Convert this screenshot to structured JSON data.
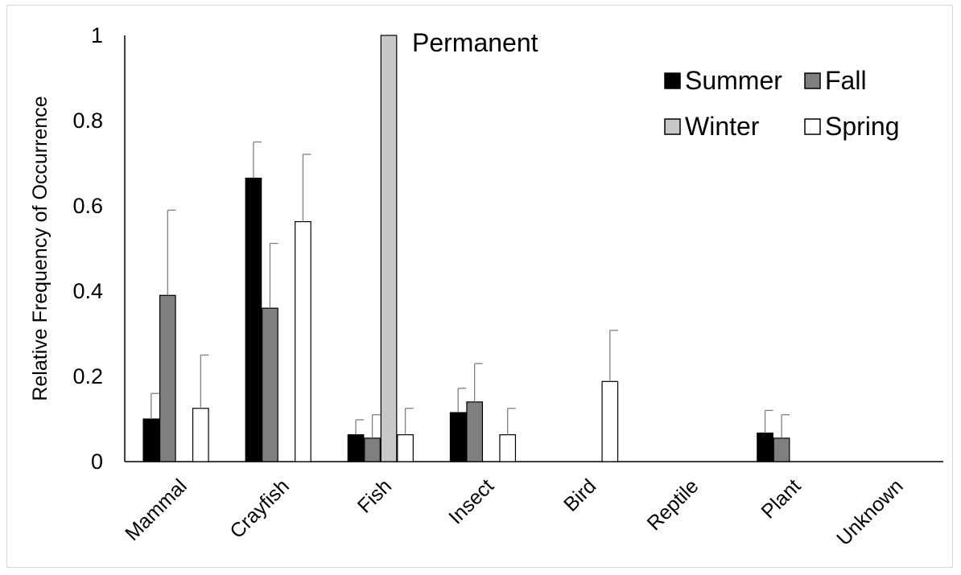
{
  "chart_data": {
    "type": "bar",
    "title": "Permanent",
    "ylabel": "Relative Frequency of Occurrence",
    "xlabel": "",
    "ylim": [
      0,
      1
    ],
    "yticks": [
      0,
      0.2,
      0.4,
      0.6,
      0.8,
      1
    ],
    "ytick_labels": [
      "0",
      "0.2",
      "0.4",
      "0.6",
      "0.8",
      "1"
    ],
    "grid": false,
    "legend_position": "top-right",
    "categories": [
      "Mammal",
      "Crayfish",
      "Fish",
      "Insect",
      "Bird",
      "Reptile",
      "Plant",
      "Unknown"
    ],
    "series": [
      {
        "name": "Summer",
        "color": "#000000",
        "values": [
          0.1,
          0.665,
          0.063,
          0.115,
          0,
          0,
          0.067,
          0
        ],
        "errors": [
          0.06,
          0.085,
          0.035,
          0.057,
          0,
          0,
          0.053,
          0
        ]
      },
      {
        "name": "Fall",
        "color": "#7f7f7f",
        "values": [
          0.39,
          0.36,
          0.055,
          0.14,
          0,
          0,
          0.055,
          0
        ],
        "errors": [
          0.2,
          0.152,
          0.055,
          0.09,
          0,
          0,
          0.055,
          0
        ]
      },
      {
        "name": "Winter",
        "color": "#c8c8c8",
        "values": [
          0,
          0,
          1.0,
          0,
          0,
          0,
          0,
          0
        ],
        "errors": [
          0,
          0,
          0,
          0,
          0,
          0,
          0,
          0
        ]
      },
      {
        "name": "Spring",
        "color": "#ffffff",
        "values": [
          0.125,
          0.563,
          0.063,
          0.063,
          0.188,
          0,
          0,
          0
        ],
        "errors": [
          0.125,
          0.158,
          0.062,
          0.062,
          0.12,
          0,
          0,
          0
        ]
      }
    ]
  }
}
